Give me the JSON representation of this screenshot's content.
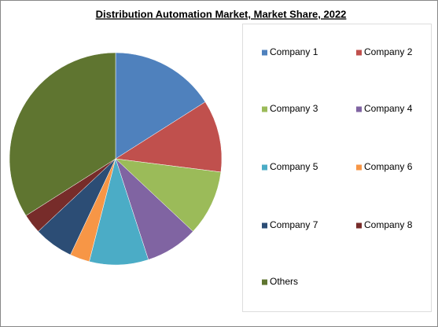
{
  "chart_data": {
    "type": "pie",
    "title": "Distribution Automation Market, Market Share, 2022",
    "categories": [
      "Company 1",
      "Company 2",
      "Company 3",
      "Company 4",
      "Company 5",
      "Company 6",
      "Company 7",
      "Company 8",
      "Others"
    ],
    "values": [
      16,
      11,
      10,
      8,
      9,
      3,
      6,
      3,
      34
    ],
    "colors": [
      "#4f81bd",
      "#c0504d",
      "#9bbb59",
      "#8064a2",
      "#4bacc6",
      "#f79646",
      "#2c4d75",
      "#772c2a",
      "#5f7530"
    ],
    "legend": "right"
  }
}
